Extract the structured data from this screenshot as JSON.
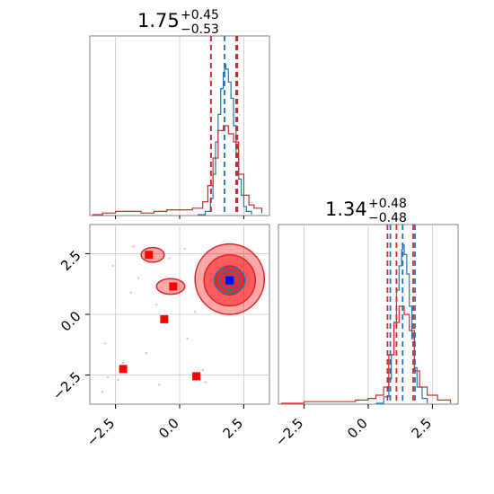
{
  "colors": {
    "blue": "#1f77b4",
    "red": "#d62728",
    "red_fill": "#ff0000",
    "point_blue": "#0000ff",
    "grid": "#c8c8c8",
    "axes": "#808080"
  },
  "titles": {
    "param1": {
      "value": "1.75",
      "plus": "+0.45",
      "minus": "−0.53"
    },
    "param2": {
      "value": "1.34",
      "plus": "+0.48",
      "minus": "−0.48"
    }
  },
  "chart_data": [
    {
      "type": "line",
      "panel": "top-left histogram (marginal of parameter 1)",
      "xlim": [
        -3.5,
        3.5
      ],
      "xticks": [
        -2.5,
        0.0,
        2.5
      ],
      "grid": true,
      "series": [
        {
          "color": "#1f77b4",
          "x": [
            0.7,
            1.0,
            1.2,
            1.3,
            1.4,
            1.5,
            1.6,
            1.7,
            1.75,
            1.8,
            1.9,
            2.0,
            2.1,
            2.2,
            2.3,
            2.4,
            2.5,
            2.6,
            2.8
          ],
          "y": [
            0,
            0.02,
            0.1,
            0.25,
            0.45,
            0.62,
            0.78,
            0.88,
            0.93,
            0.9,
            0.82,
            0.72,
            0.55,
            0.38,
            0.22,
            0.12,
            0.05,
            0.02,
            0
          ],
          "quantiles": [
            1.22,
            1.75,
            2.2
          ]
        },
        {
          "color": "#d62728",
          "x": [
            -3.4,
            -3.0,
            -2.5,
            -2.0,
            -1.5,
            -1.0,
            -0.5,
            0.0,
            0.5,
            0.9,
            1.1,
            1.3,
            1.5,
            1.7,
            1.9,
            2.1,
            2.3,
            2.5,
            2.7,
            2.9,
            3.2
          ],
          "y": [
            0,
            0.01,
            0.02,
            0.02,
            0.01,
            0.02,
            0.03,
            0.03,
            0.04,
            0.08,
            0.18,
            0.35,
            0.52,
            0.55,
            0.5,
            0.45,
            0.25,
            0.12,
            0.06,
            0.04,
            0.01
          ],
          "quantiles": [
            1.22,
            2.22,
            2.25
          ]
        }
      ]
    },
    {
      "type": "line",
      "panel": "bottom-right histogram (marginal of parameter 2)",
      "xlim": [
        -3.5,
        3.5
      ],
      "xticks": [
        -2.5,
        0.0,
        2.5
      ],
      "grid": true,
      "series": [
        {
          "color": "#1f77b4",
          "x": [
            0.3,
            0.6,
            0.8,
            0.9,
            1.0,
            1.1,
            1.2,
            1.3,
            1.34,
            1.4,
            1.5,
            1.6,
            1.7,
            1.8,
            1.9,
            2.1,
            2.3
          ],
          "y": [
            0,
            0.04,
            0.15,
            0.3,
            0.5,
            0.7,
            0.85,
            0.95,
            0.98,
            0.92,
            0.8,
            0.6,
            0.4,
            0.22,
            0.1,
            0.03,
            0
          ],
          "quantiles": [
            0.86,
            1.34,
            1.82
          ]
        },
        {
          "color": "#d62728",
          "x": [
            -3.4,
            -2.5,
            -1.5,
            -0.5,
            0.0,
            0.3,
            0.6,
            0.8,
            1.0,
            1.2,
            1.4,
            1.6,
            1.8,
            2.0,
            2.3,
            2.7,
            3.2
          ],
          "y": [
            0,
            0.01,
            0.01,
            0.02,
            0.03,
            0.05,
            0.1,
            0.3,
            0.5,
            0.6,
            0.55,
            0.45,
            0.2,
            0.1,
            0.05,
            0.02,
            0
          ],
          "quantiles": [
            0.75,
            1.1,
            1.75
          ]
        }
      ]
    },
    {
      "type": "scatter",
      "panel": "bottom-left 2D joint distribution",
      "xlim": [
        -3.5,
        3.5
      ],
      "ylim": [
        -3.7,
        3.7
      ],
      "xticks": [
        -2.5,
        0.0,
        2.5
      ],
      "yticks": [
        -2.5,
        0.0,
        2.5
      ],
      "grid": true,
      "red_markers": [
        {
          "x": -1.2,
          "y": 2.45
        },
        {
          "x": -0.25,
          "y": 1.15
        },
        {
          "x": -0.6,
          "y": -0.2
        },
        {
          "x": -2.2,
          "y": -2.25
        },
        {
          "x": 0.65,
          "y": -2.55
        },
        {
          "x": 1.95,
          "y": 1.4
        }
      ],
      "blue_marker": {
        "x": 1.95,
        "y": 1.4
      },
      "red_contours": [
        {
          "cx": 1.95,
          "cy": 1.45,
          "rx": 1.35,
          "ry": 1.45,
          "level": "outer"
        },
        {
          "cx": 1.95,
          "cy": 1.4,
          "rx": 1.0,
          "ry": 1.05,
          "level": "middle"
        },
        {
          "cx": 1.95,
          "cy": 1.4,
          "rx": 0.55,
          "ry": 0.6,
          "level": "inner"
        },
        {
          "cx": -1.05,
          "cy": 2.45,
          "rx": 0.45,
          "ry": 0.3,
          "level": "outer"
        },
        {
          "cx": -0.35,
          "cy": 1.15,
          "rx": 0.55,
          "ry": 0.32,
          "level": "outer"
        }
      ],
      "blue_contours": [
        {
          "cx": 1.95,
          "cy": 1.4,
          "rx": 0.6,
          "ry": 0.55
        },
        {
          "cx": 1.95,
          "cy": 1.4,
          "rx": 0.4,
          "ry": 0.38
        },
        {
          "cx": 1.95,
          "cy": 1.4,
          "rx": 0.2,
          "ry": 0.2
        }
      ],
      "scatter_points": [
        [
          -2.8,
          -2.6
        ],
        [
          -2.2,
          -2.0
        ],
        [
          -1.8,
          2.8
        ],
        [
          0.2,
          2.7
        ],
        [
          -0.9,
          0.4
        ],
        [
          0.9,
          -2.3
        ],
        [
          -1.3,
          -1.6
        ],
        [
          0.3,
          -1.0
        ],
        [
          -2.6,
          2.0
        ],
        [
          -3.0,
          -3.2
        ],
        [
          -0.4,
          2.3
        ],
        [
          -1.6,
          1.5
        ],
        [
          0.6,
          0.1
        ],
        [
          -2.4,
          -2.7
        ],
        [
          -0.8,
          -2.9
        ],
        [
          1.0,
          -2.8
        ],
        [
          -2.9,
          -1.2
        ],
        [
          -1.9,
          0.9
        ]
      ]
    }
  ]
}
